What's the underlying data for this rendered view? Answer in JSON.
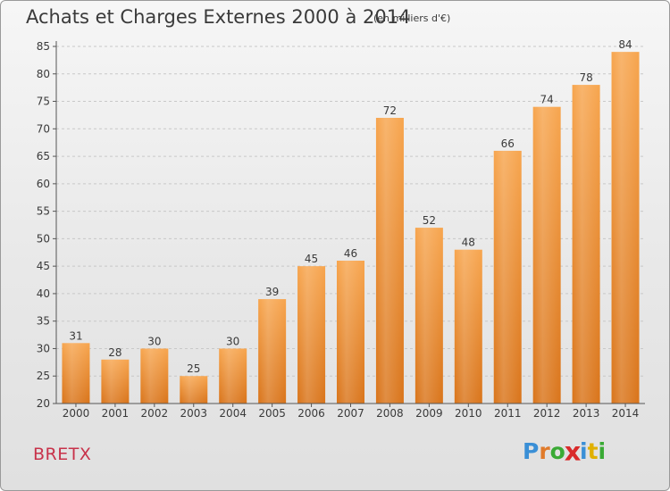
{
  "header": {
    "title": "Achats et Charges Externes 2000 à 2014",
    "subtitle": "(en milliers d'€)"
  },
  "footer": {
    "town": "BRETX",
    "logo": {
      "text": "Proxiti",
      "letters": [
        {
          "char": "P",
          "color": "#3a8fd6"
        },
        {
          "char": "r",
          "color": "#e07a2a"
        },
        {
          "char": "o",
          "color": "#3aaa35"
        },
        {
          "char": "x",
          "color": "#d92a2a"
        },
        {
          "char": "i",
          "color": "#3a8fd6"
        },
        {
          "char": "t",
          "color": "#e0b000"
        },
        {
          "char": "i",
          "color": "#3aaa35"
        }
      ]
    }
  },
  "chart_data": {
    "type": "bar",
    "categories": [
      "2000",
      "2001",
      "2002",
      "2003",
      "2004",
      "2005",
      "2006",
      "2007",
      "2008",
      "2009",
      "2010",
      "2011",
      "2012",
      "2013",
      "2014"
    ],
    "values": [
      31,
      28,
      30,
      25,
      30,
      39,
      45,
      46,
      72,
      52,
      48,
      66,
      74,
      78,
      84
    ],
    "title": "Achats et Charges Externes 2000 à 2014",
    "subtitle": "(en milliers d'€)",
    "xlabel": "",
    "ylabel": "",
    "ylim": [
      20,
      85
    ],
    "yticks": [
      20,
      25,
      30,
      35,
      40,
      45,
      50,
      55,
      60,
      65,
      70,
      75,
      80,
      85
    ],
    "grid": true,
    "data_labels": true,
    "colors": {
      "bar_top": "#f7a54e",
      "bar_bottom": "#d9741a",
      "grid": "#c8c8c8",
      "axis": "#555555",
      "text": "#3a3a3a"
    }
  }
}
